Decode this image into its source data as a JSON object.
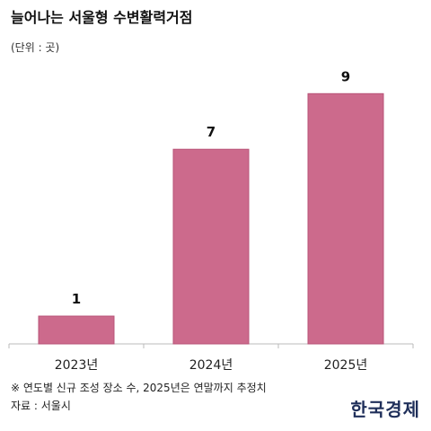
{
  "header": {
    "title": "늘어나는 서울형 수변활력거점",
    "unit": "(단위 : 곳)"
  },
  "footer": {
    "note": "※ 연도별 신규 조성 장소 수, 2025년은 연말까지 추정치",
    "source": "자료 : 서울시",
    "logo": "한국경제"
  },
  "colors": {
    "bar": "#cc6a8c",
    "bar_stroke": "#b85478",
    "axis": "#bbbbbb"
  },
  "chart_data": {
    "type": "bar",
    "categories": [
      "2023년",
      "2024년",
      "2025년"
    ],
    "values": [
      1,
      7,
      9
    ],
    "data_labels": [
      "1",
      "7",
      "9"
    ],
    "title": "늘어나는 서울형 수변활력거점",
    "xlabel": "",
    "ylabel": "",
    "ylim": [
      0,
      9.3
    ],
    "grid": false,
    "legend": "none"
  }
}
